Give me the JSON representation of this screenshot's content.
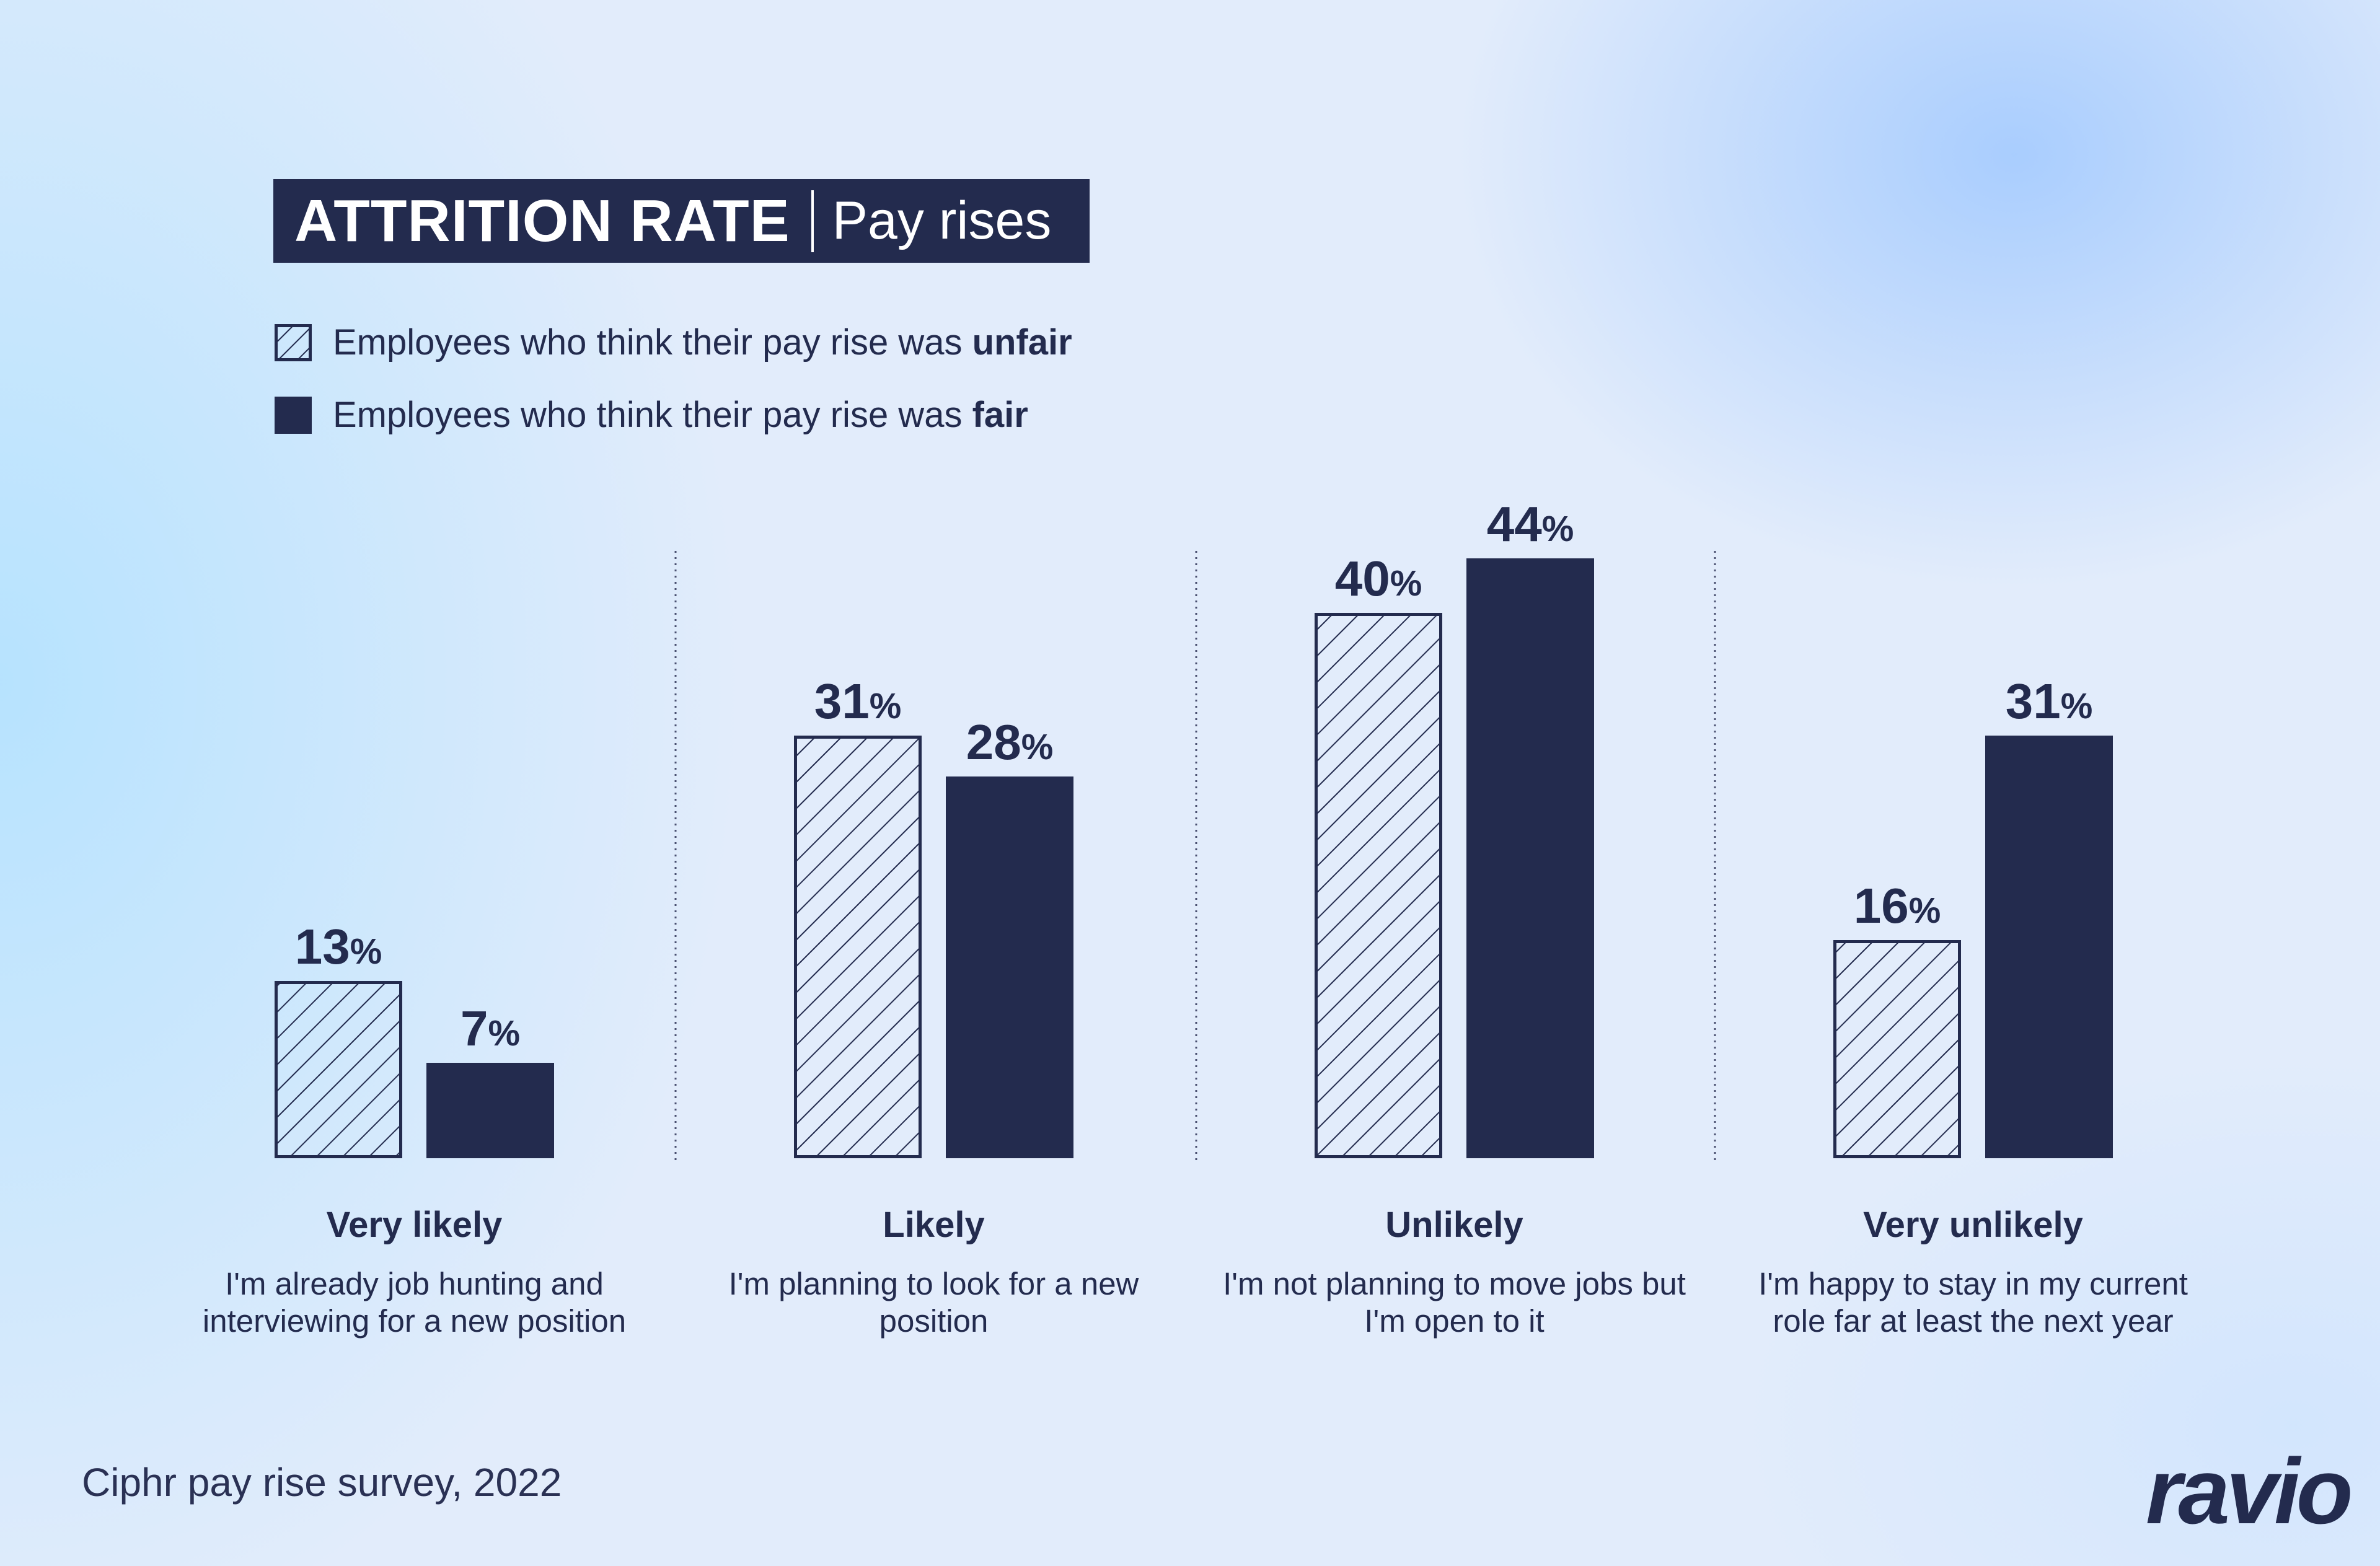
{
  "header": {
    "title": "ATTRITION RATE",
    "subtitle": "Pay rises"
  },
  "legend": [
    {
      "prefix": "Employees who think their pay rise was ",
      "bold": "unfair",
      "pattern": "hatched"
    },
    {
      "prefix": "Employees who think their pay rise was ",
      "bold": "fair",
      "pattern": "solid"
    }
  ],
  "colors": {
    "navy": "#232b4e",
    "background": "#e2ecfb"
  },
  "chart_data": {
    "type": "bar",
    "categories": [
      "Very likely",
      "Likely",
      "Unlikely",
      "Very unlikely"
    ],
    "descriptions": [
      "I'm already job hunting and interviewing for a new position",
      "I'm planning to look for a new position",
      "I'm not planning to move jobs but I'm open to it",
      "I'm happy to stay in my current role far at least the next year"
    ],
    "series": [
      {
        "name": "Employees who think their pay rise was unfair",
        "values": [
          13,
          31,
          40,
          16
        ],
        "pattern": "hatched"
      },
      {
        "name": "Employees who think their pay rise was fair",
        "values": [
          7,
          28,
          44,
          31
        ],
        "pattern": "solid"
      }
    ],
    "unit": "%",
    "grid": false,
    "legend_position": "top-left"
  },
  "footer": {
    "source": "Ciphr pay rise survey, 2022",
    "logo": "ravio"
  }
}
